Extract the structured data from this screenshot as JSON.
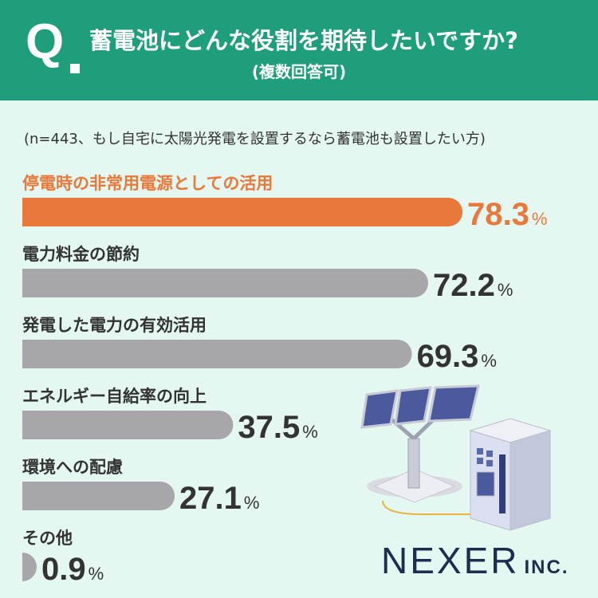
{
  "header": {
    "q": "Q",
    "title": "蓄電池にどんな役割を期待したいですか?",
    "subtitle": "(複数回答可)"
  },
  "note": "(n=443、もし自宅に太陽光発電を設置するなら蓄電池も設置したい方)",
  "logo": {
    "name": "NEXER",
    "suffix": "INC."
  },
  "colors": {
    "header": "#1e9e7a",
    "background": "#e4f7f1",
    "highlight": "#e8793b",
    "bar": "#a7a7ab",
    "text": "#333333"
  },
  "illustration": [
    "solar-panel-icon",
    "storage-battery-icon"
  ],
  "chart_data": {
    "type": "bar",
    "orientation": "horizontal",
    "categories": [
      "停電時の非常用電源としての活用",
      "電力料金の節約",
      "発電した電力の有効活用",
      "エネルギー自給率の向上",
      "環境への配慮",
      "その他"
    ],
    "values": [
      78.3,
      72.2,
      69.3,
      37.5,
      27.1,
      0.9
    ],
    "value_labels": [
      "78.3",
      "72.2",
      "69.3",
      "37.5",
      "27.1",
      "0.9"
    ],
    "unit": "%",
    "highlight_index": 0,
    "xlim": [
      0,
      100
    ]
  }
}
